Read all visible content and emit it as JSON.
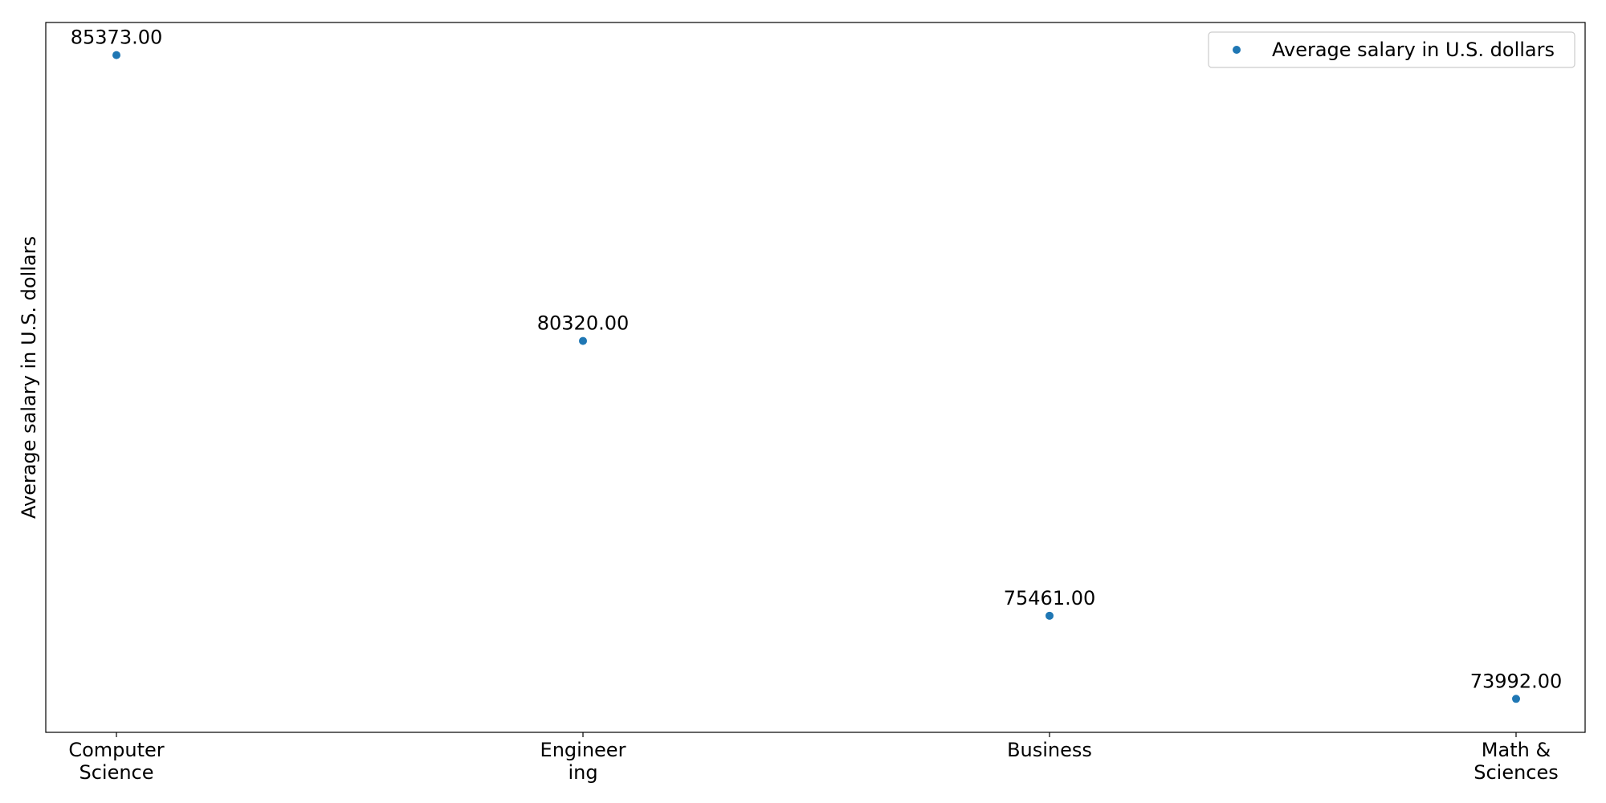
{
  "chart_data": {
    "type": "scatter",
    "categories": [
      [
        "Computer",
        "Science"
      ],
      [
        "Engineer",
        "ing"
      ],
      [
        "Business"
      ],
      [
        "Math &",
        "Sciences"
      ]
    ],
    "series": [
      {
        "name": "Average salary in U.S. dollars",
        "values": [
          85373.0,
          80320.0,
          75461.0,
          73992.0
        ],
        "color": "#1f77b4"
      }
    ],
    "data_labels": [
      "85373.00",
      "80320.00",
      "75461.00",
      "73992.00"
    ],
    "xlabel": "",
    "ylabel": "Average salary in U.S. dollars",
    "ylim": [
      73400,
      85950
    ],
    "grid": false,
    "y_ticks_visible": false,
    "legend_position": "top-right"
  }
}
